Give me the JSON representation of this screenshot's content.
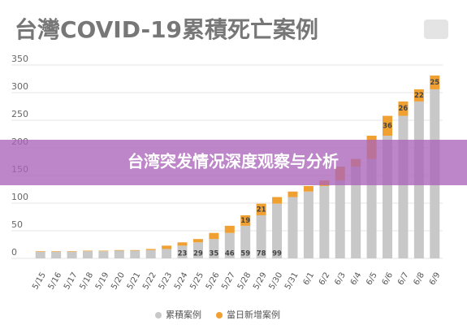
{
  "chart_data": {
    "type": "bar",
    "stacked": true,
    "title": "台灣COVID-19累積死亡案例",
    "banner": "台湾突发情况深度观察与分析",
    "categories": [
      "5/15",
      "5/16",
      "5/17",
      "5/18",
      "5/19",
      "5/20",
      "5/21",
      "5/22",
      "5/23",
      "5/24",
      "5/25",
      "5/26",
      "5/27",
      "5/28",
      "5/29",
      "5/30",
      "5/31",
      "6/1",
      "6/2",
      "6/3",
      "6/4",
      "6/5",
      "6/6",
      "6/7",
      "6/8",
      "6/9"
    ],
    "series": [
      {
        "name": "累積案例",
        "color": "#c8c8c8",
        "values": [
          12,
          12,
          12,
          13,
          13,
          14,
          14,
          15,
          17,
          23,
          29,
          35,
          46,
          59,
          78,
          99,
          111,
          121,
          131,
          141,
          166,
          180,
          222,
          258,
          284,
          306
        ],
        "value_labels": [
          null,
          null,
          null,
          null,
          null,
          null,
          null,
          null,
          null,
          "23",
          "29",
          "35",
          "46",
          "59",
          "78",
          "99",
          null,
          null,
          null,
          null,
          null,
          null,
          null,
          null,
          null,
          null
        ]
      },
      {
        "name": "當日新增案例",
        "color": "#f0a030",
        "values": [
          1,
          1,
          1,
          1,
          1,
          1,
          1,
          2,
          6,
          6,
          6,
          11,
          13,
          19,
          21,
          12,
          10,
          10,
          10,
          25,
          14,
          42,
          36,
          26,
          22,
          25
        ],
        "value_labels": [
          null,
          null,
          null,
          null,
          null,
          null,
          null,
          null,
          null,
          null,
          null,
          null,
          null,
          "19",
          "21",
          null,
          null,
          null,
          null,
          null,
          null,
          null,
          "36",
          "26",
          "22",
          "25"
        ]
      }
    ],
    "ylim": [
      0,
      350
    ],
    "yticks": [
      0,
      50,
      100,
      150,
      200,
      250,
      300,
      350
    ],
    "grid": true
  }
}
